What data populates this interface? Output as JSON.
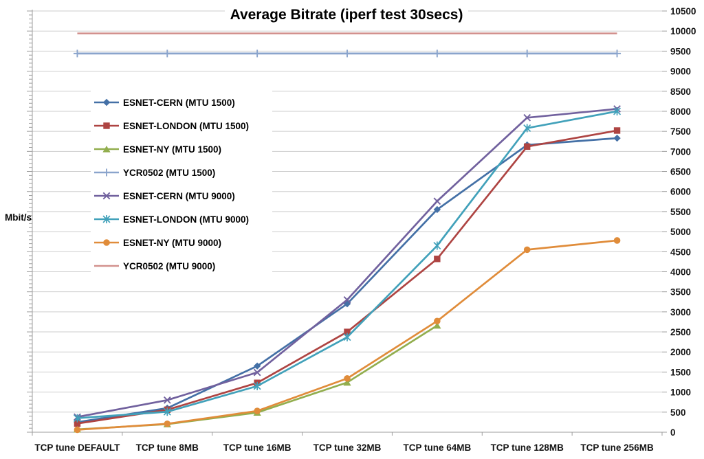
{
  "chart_data": {
    "type": "line",
    "title": "Average Bitrate (iperf test 30secs)",
    "ylabel": "Mbit/s",
    "xlabel": "",
    "ylim": [
      0,
      10500
    ],
    "ytick_step": 500,
    "yminor_step": 100,
    "grid": "horizontal",
    "legend_position": "upper-left-inside",
    "axis_color": "#9c9c9c",
    "gridline_color": "#cdcdcd",
    "categories": [
      "TCP tune DEFAULT",
      "TCP tune 8MB",
      "TCP tune 16MB",
      "TCP tune 32MB",
      "TCP tune 64MB",
      "TCP tune 128MB",
      "TCP tune 256MB"
    ],
    "series": [
      {
        "name": "ESNET-CERN (MTU 1500)",
        "color": "#4470a6",
        "marker": "diamond",
        "values": [
          250,
          600,
          1650,
          3200,
          5550,
          7160,
          7330
        ]
      },
      {
        "name": "ESNET-LONDON (MTU 1500)",
        "color": "#ae4442",
        "marker": "square",
        "values": [
          215,
          560,
          1230,
          2500,
          4320,
          7120,
          7520
        ]
      },
      {
        "name": "ESNET-NY (MTU 1500)",
        "color": "#92ae4e",
        "marker": "triangle",
        "values": [
          70,
          200,
          490,
          1240,
          2660,
          null,
          null
        ]
      },
      {
        "name": "YCR0502 (MTU 1500)",
        "color": "#8aa4cc",
        "marker": "plus",
        "values": [
          9440,
          9440,
          9440,
          9440,
          9440,
          9440,
          9440
        ]
      },
      {
        "name": "ESNET-CERN (MTU 9000)",
        "color": "#71619e",
        "marker": "x",
        "values": [
          380,
          800,
          1490,
          3300,
          5760,
          7840,
          8060
        ]
      },
      {
        "name": "ESNET-LONDON (MTU 9000)",
        "color": "#41a1ba",
        "marker": "asterisk",
        "values": [
          350,
          510,
          1150,
          2370,
          4650,
          7580,
          8000
        ]
      },
      {
        "name": "ESNET-NY (MTU 9000)",
        "color": "#e08c3a",
        "marker": "circle",
        "values": [
          60,
          210,
          530,
          1340,
          2770,
          4550,
          4780
        ]
      },
      {
        "name": "YCR0502 (MTU 9000)",
        "color": "#d2918e",
        "marker": "none",
        "values": [
          9940,
          9940,
          9940,
          9940,
          9940,
          9940,
          9940
        ]
      }
    ]
  }
}
